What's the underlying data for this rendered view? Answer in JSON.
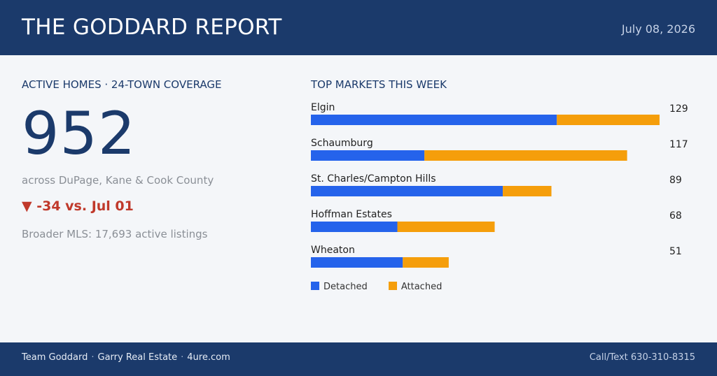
{
  "header": {
    "title": "THE GODDARD REPORT",
    "date": "July 08, 2026"
  },
  "kpi": {
    "label": "ACTIVE HOMES · 24-TOWN COVERAGE",
    "value": "952",
    "subtitle": "across DuPage, Kane & Cook County",
    "change": "▼ -34 vs. Jul 01",
    "broader": "Broader MLS: 17,693 active listings"
  },
  "colors": {
    "header_bg": "#1b3a6b",
    "detached": "#2563eb",
    "attached": "#f59e0b",
    "decrease": "#c0392b"
  },
  "chart_data": {
    "type": "bar",
    "orientation": "horizontal",
    "stacked": true,
    "title": "TOP MARKETS THIS WEEK",
    "categories": [
      "Elgin",
      "Schaumburg",
      "St. Charles/Campton Hills",
      "Hoffman Estates",
      "Wheaton"
    ],
    "totals": [
      129,
      117,
      89,
      68,
      51
    ],
    "series": [
      {
        "name": "Detached",
        "color": "#2563eb",
        "values": [
          91,
          42,
          71,
          32,
          34
        ]
      },
      {
        "name": "Attached",
        "color": "#f59e0b",
        "values": [
          38,
          75,
          18,
          36,
          17
        ]
      }
    ],
    "legend": "bottom-left",
    "grid": false
  },
  "footer": {
    "team": "Team Goddard",
    "brokerage": "Garry Real Estate",
    "site": "4ure.com",
    "separator": "·",
    "contact": "Call/Text 630-310-8315"
  }
}
